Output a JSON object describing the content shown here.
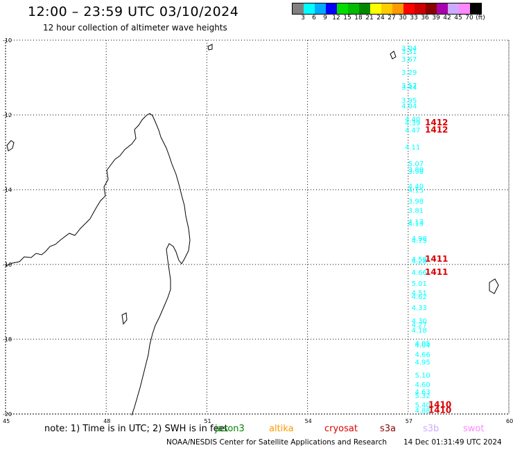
{
  "title": "12:00 – 23:59 UTC 03/10/2024",
  "subtitle": "12 hour collection of altimeter wave heights",
  "colorbar": {
    "unit": "(ft)",
    "labels": [
      "3",
      "6",
      "9",
      "12",
      "15",
      "18",
      "21",
      "24",
      "27",
      "30",
      "33",
      "36",
      "39",
      "42",
      "45",
      "70"
    ],
    "colors": [
      "#808080",
      "#00ffff",
      "#00aaff",
      "#0000ff",
      "#00dd00",
      "#00bb00",
      "#008800",
      "#ffff00",
      "#ffcc00",
      "#ff9900",
      "#ff0000",
      "#cc0000",
      "#880000",
      "#aa00aa",
      "#ccaaff",
      "#ff88ff",
      "#000000"
    ]
  },
  "axes": {
    "lat_labels": [
      "-10",
      "-12",
      "-14",
      "-16",
      "-18",
      "-20"
    ],
    "lon_labels": [
      "45",
      "48",
      "51",
      "54",
      "57",
      "60"
    ]
  },
  "tracks": [
    {
      "satellite": "jason3",
      "color": "#00ffff",
      "points": [
        {
          "lat": -10.2,
          "lon": 56.8,
          "swh": "3.04"
        },
        {
          "lat": -10.3,
          "lon": 56.8,
          "swh": "3.31"
        },
        {
          "lat": -10.5,
          "lon": 56.8,
          "swh": "3.67"
        },
        {
          "lat": -10.85,
          "lon": 56.8,
          "swh": "3.29"
        },
        {
          "lat": -11.2,
          "lon": 56.8,
          "swh": "3.57"
        },
        {
          "lat": -11.25,
          "lon": 56.8,
          "swh": "3.44"
        },
        {
          "lat": -11.6,
          "lon": 56.8,
          "swh": "3.95"
        },
        {
          "lat": -11.75,
          "lon": 56.8,
          "swh": "4.04"
        },
        {
          "lat": -12.1,
          "lon": 56.9,
          "swh": "4.40"
        },
        {
          "lat": -12.2,
          "lon": 56.9,
          "swh": "4.39"
        },
        {
          "lat": -12.4,
          "lon": 56.9,
          "swh": "4.47"
        },
        {
          "lat": -12.85,
          "lon": 56.9,
          "swh": "4.11"
        },
        {
          "lat": -13.3,
          "lon": 57.0,
          "swh": "5.07"
        },
        {
          "lat": -13.45,
          "lon": 57.0,
          "swh": "3.80"
        },
        {
          "lat": -13.5,
          "lon": 57.0,
          "swh": "3.98"
        },
        {
          "lat": -13.9,
          "lon": 57.0,
          "swh": "4.40"
        },
        {
          "lat": -14.0,
          "lon": 57.0,
          "swh": "4.15"
        },
        {
          "lat": -14.3,
          "lon": 57.0,
          "swh": "3.98"
        },
        {
          "lat": -14.55,
          "lon": 57.0,
          "swh": "3.81"
        },
        {
          "lat": -14.85,
          "lon": 57.0,
          "swh": "4.17"
        },
        {
          "lat": -14.9,
          "lon": 57.0,
          "swh": "4.19"
        },
        {
          "lat": -15.3,
          "lon": 57.1,
          "swh": "4.98"
        },
        {
          "lat": -15.35,
          "lon": 57.1,
          "swh": "4.75"
        },
        {
          "lat": -15.85,
          "lon": 57.1,
          "swh": "4.59"
        },
        {
          "lat": -15.9,
          "lon": 57.1,
          "swh": "4.28"
        },
        {
          "lat": -16.2,
          "lon": 57.1,
          "swh": "4.66"
        },
        {
          "lat": -16.5,
          "lon": 57.1,
          "swh": "5.01"
        },
        {
          "lat": -16.75,
          "lon": 57.1,
          "swh": "4.51"
        },
        {
          "lat": -16.85,
          "lon": 57.1,
          "swh": "4.62"
        },
        {
          "lat": -17.15,
          "lon": 57.1,
          "swh": "4.33"
        },
        {
          "lat": -17.5,
          "lon": 57.1,
          "swh": "4.30"
        },
        {
          "lat": -17.6,
          "lon": 57.1,
          "swh": "4.27"
        },
        {
          "lat": -17.75,
          "lon": 57.1,
          "swh": "4.18"
        },
        {
          "lat": -18.1,
          "lon": 57.2,
          "swh": "4.05"
        },
        {
          "lat": -18.15,
          "lon": 57.2,
          "swh": "4.04"
        },
        {
          "lat": -18.4,
          "lon": 57.2,
          "swh": "4.66"
        },
        {
          "lat": -18.6,
          "lon": 57.2,
          "swh": "4.95"
        },
        {
          "lat": -18.95,
          "lon": 57.2,
          "swh": "5.10"
        },
        {
          "lat": -19.2,
          "lon": 57.2,
          "swh": "4.60"
        },
        {
          "lat": -19.4,
          "lon": 57.2,
          "swh": "4.63"
        },
        {
          "lat": -19.5,
          "lon": 57.2,
          "swh": "5.32"
        },
        {
          "lat": -19.75,
          "lon": 57.2,
          "swh": "5.40"
        },
        {
          "lat": -19.9,
          "lon": 57.2,
          "swh": "4.88"
        }
      ]
    },
    {
      "satellite": "cryosat-times",
      "color": "#dd0000",
      "points": [
        {
          "lat": -12.2,
          "lon": 57.5,
          "swh": "1412"
        },
        {
          "lat": -12.4,
          "lon": 57.5,
          "swh": "1412"
        },
        {
          "lat": -15.85,
          "lon": 57.5,
          "swh": "1411"
        },
        {
          "lat": -16.2,
          "lon": 57.5,
          "swh": "1411"
        },
        {
          "lat": -19.75,
          "lon": 57.6,
          "swh": "1410"
        },
        {
          "lat": -19.9,
          "lon": 57.6,
          "swh": "1410"
        }
      ]
    }
  ],
  "note": {
    "prefix": "note:  1) Time is in UTC;  2) SWH is in feet",
    "satellites": [
      {
        "name": "jason3",
        "color": "#008800"
      },
      {
        "name": "altika",
        "color": "#ff9900"
      },
      {
        "name": "cryosat",
        "color": "#dd0000"
      },
      {
        "name": "s3a",
        "color": "#880000"
      },
      {
        "name": "s3b",
        "color": "#ccaaff"
      },
      {
        "name": "swot",
        "color": "#ff88ff"
      }
    ]
  },
  "footer": "NOAA/NESDIS Center for Satellite Applications and Research",
  "footer_time": "14 Dec 01:31:49 UTC 2024"
}
